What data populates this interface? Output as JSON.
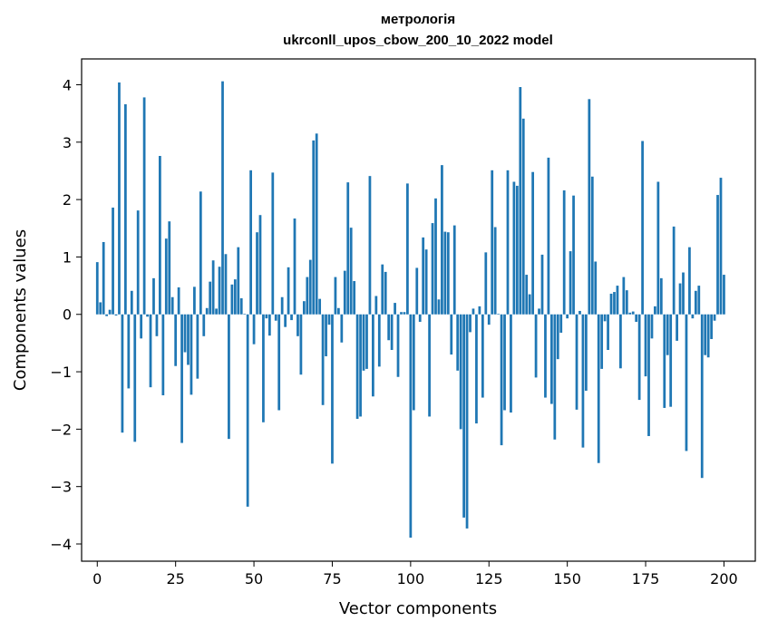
{
  "chart_data": {
    "type": "bar",
    "title": "метрологія",
    "subtitle": "ukrconll_upos_cbow_200_10_2022 model",
    "xlabel": "Vector components",
    "ylabel": "Components values",
    "xlim": [
      -5,
      210
    ],
    "ylim": [
      -4.3,
      4.45
    ],
    "xticks": [
      0,
      25,
      50,
      75,
      100,
      125,
      150,
      175,
      200
    ],
    "xtick_labels": [
      "0",
      "25",
      "50",
      "75",
      "100",
      "125",
      "150",
      "175",
      "200"
    ],
    "yticks": [
      -4,
      -3,
      -2,
      -1,
      0,
      1,
      2,
      3,
      4
    ],
    "ytick_labels": [
      "−4",
      "−3",
      "−2",
      "−1",
      "0",
      "1",
      "2",
      "3",
      "4"
    ],
    "bar_color": "#1f77b4",
    "grid": false,
    "legend": "none",
    "values": [
      0.91,
      0.21,
      1.26,
      -0.03,
      0.08,
      1.86,
      -0.02,
      4.04,
      -2.06,
      3.66,
      -1.29,
      0.41,
      -2.22,
      1.81,
      -0.42,
      3.78,
      -0.04,
      -1.27,
      0.63,
      -0.38,
      2.76,
      -1.41,
      1.32,
      1.62,
      0.3,
      -0.9,
      0.47,
      -2.24,
      -0.66,
      -0.88,
      -1.4,
      0.48,
      -1.12,
      2.14,
      -0.38,
      0.11,
      0.57,
      0.94,
      0.1,
      0.83,
      4.06,
      1.05,
      -2.17,
      0.52,
      0.61,
      1.17,
      0.28,
      0.01,
      -3.35,
      2.51,
      -0.52,
      1.43,
      1.73,
      -1.88,
      -0.07,
      -0.37,
      2.47,
      -0.11,
      -1.67,
      0.3,
      -0.22,
      0.82,
      -0.1,
      1.67,
      -0.38,
      -1.05,
      0.23,
      0.65,
      0.95,
      3.03,
      3.15,
      0.27,
      -1.58,
      -0.73,
      -0.18,
      -2.6,
      0.65,
      0.11,
      -0.49,
      0.76,
      2.3,
      1.51,
      0.58,
      -1.82,
      -1.78,
      -0.98,
      -0.95,
      2.41,
      -1.43,
      0.32,
      -0.91,
      0.87,
      0.74,
      -0.45,
      -0.62,
      0.2,
      -1.09,
      0.04,
      0.04,
      2.28,
      -3.89,
      -1.67,
      0.81,
      -0.13,
      1.34,
      1.13,
      -1.78,
      1.59,
      2.02,
      0.26,
      2.6,
      1.44,
      1.43,
      -0.7,
      1.55,
      -0.98,
      -2.0,
      -3.54,
      -3.73,
      -0.31,
      0.1,
      -1.9,
      0.14,
      -1.45,
      1.08,
      -0.18,
      2.51,
      1.52,
      0.01,
      -2.28,
      -1.67,
      2.51,
      -1.71,
      2.31,
      2.24,
      3.96,
      3.41,
      0.69,
      0.35,
      2.48,
      -1.1,
      0.1,
      1.04,
      -1.45,
      2.73,
      -1.56,
      -2.18,
      -0.78,
      -0.32,
      2.16,
      -0.07,
      1.1,
      2.07,
      -1.66,
      0.06,
      -2.32,
      -1.33,
      3.75,
      2.4,
      0.92,
      -2.59,
      -0.95,
      -0.12,
      -0.62,
      0.36,
      0.39,
      0.5,
      -0.94,
      0.65,
      0.42,
      0.03,
      0.05,
      -0.13,
      -1.49,
      3.02,
      -1.08,
      -2.12,
      -0.42,
      0.14,
      2.31,
      0.63,
      -1.63,
      -0.71,
      -1.61,
      1.53,
      -0.46,
      0.54,
      0.73,
      -2.38,
      1.17,
      -0.07,
      0.41,
      0.5,
      -2.85,
      -0.71,
      -0.75,
      -0.43,
      -0.11,
      2.08,
      2.38,
      0.69
    ]
  }
}
